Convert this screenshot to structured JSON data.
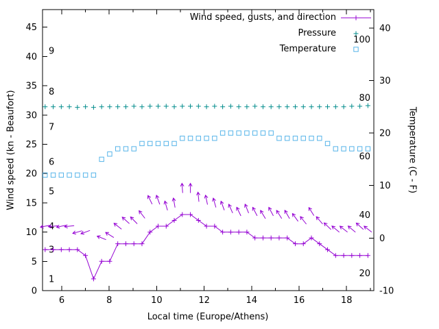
{
  "chart_data": {
    "type": "line",
    "title": "",
    "xlabel": "Local time (Europe/Athens)",
    "ylabel_left": "Wind speed (kn - Beaufort)",
    "ylabel_right": "Temperature (C - F)",
    "x_axis": {
      "min": 5.19,
      "max": 19.15,
      "ticks": [
        6,
        8,
        10,
        12,
        14,
        16,
        18
      ],
      "minor_ticks": [
        7,
        9,
        11,
        13,
        15,
        17,
        19
      ]
    },
    "y_left": {
      "min": 0,
      "max": 48,
      "ticks": [
        0,
        5,
        10,
        15,
        20,
        25,
        30,
        35,
        40,
        45
      ]
    },
    "y_right": {
      "min": -10,
      "max": 43.5,
      "ticks": [
        -10,
        0,
        10,
        20,
        30,
        40
      ]
    },
    "beaufort_labels": [
      {
        "label": "1",
        "kn": 2
      },
      {
        "label": "3",
        "kn": 7
      },
      {
        "label": "4",
        "kn": 11
      },
      {
        "label": "5",
        "kn": 17
      },
      {
        "label": "6",
        "kn": 22
      },
      {
        "label": "7",
        "kn": 28
      },
      {
        "label": "8",
        "kn": 34
      },
      {
        "label": "9",
        "kn": 41
      }
    ],
    "fahrenheit_labels": [
      {
        "label": "20",
        "c": -6.7
      },
      {
        "label": "40",
        "c": 4.4
      },
      {
        "label": "60",
        "c": 15.6
      },
      {
        "label": "80",
        "c": 26.7
      },
      {
        "label": "100",
        "c": 37.8
      }
    ],
    "x": [
      5.3,
      5.64,
      5.98,
      6.32,
      6.66,
      7.0,
      7.34,
      7.68,
      8.02,
      8.36,
      8.7,
      9.04,
      9.38,
      9.72,
      10.06,
      10.4,
      10.74,
      11.08,
      11.42,
      11.76,
      12.1,
      12.44,
      12.78,
      13.12,
      13.46,
      13.8,
      14.14,
      14.48,
      14.82,
      15.16,
      15.5,
      15.84,
      16.18,
      16.52,
      16.86,
      17.2,
      17.54,
      17.88,
      18.22,
      18.56,
      18.9
    ],
    "series": {
      "wind_speed": {
        "name": "Wind speed (kn)",
        "color": "#9400d3",
        "axis": "left",
        "marker": "plus-line",
        "values": [
          7,
          7,
          7,
          7,
          7,
          6,
          2,
          5,
          5,
          8,
          8,
          8,
          8,
          10,
          11,
          11,
          12,
          13,
          13,
          12,
          11,
          11,
          10,
          10,
          10,
          10,
          9,
          9,
          9,
          9,
          9,
          8,
          8,
          9,
          8,
          7,
          6,
          6,
          6,
          6,
          6
        ]
      },
      "wind_gusts": {
        "name": "Wind gusts with direction arrows",
        "color": "#9400d3",
        "axis": "left",
        "marker": "arrow",
        "values": [
          11,
          11,
          11,
          11,
          10,
          10,
          null,
          9,
          9.5,
          11,
          12,
          12,
          13,
          15.5,
          15.5,
          14.5,
          15,
          17.5,
          17.5,
          16,
          15.5,
          15,
          14.5,
          14,
          13.5,
          14,
          13.5,
          13,
          13.5,
          13,
          13,
          12.5,
          12,
          13.5,
          12,
          11,
          10.5,
          10.5,
          10.5,
          11,
          10.5
        ],
        "directions_deg": [
          190,
          185,
          192,
          186,
          196,
          200,
          null,
          158,
          148,
          142,
          138,
          134,
          128,
          116,
          110,
          106,
          100,
          94,
          90,
          96,
          102,
          106,
          110,
          114,
          116,
          112,
          118,
          121,
          118,
          122,
          120,
          126,
          128,
          122,
          131,
          136,
          140,
          142,
          140,
          138,
          142
        ]
      },
      "pressure": {
        "name": "Pressure",
        "color": "#008b8b",
        "axis": "left",
        "marker": "plus",
        "values": [
          31.4,
          31.4,
          31.4,
          31.4,
          31.3,
          31.4,
          31.3,
          31.4,
          31.4,
          31.4,
          31.4,
          31.5,
          31.4,
          31.5,
          31.5,
          31.5,
          31.4,
          31.5,
          31.5,
          31.5,
          31.4,
          31.5,
          31.4,
          31.5,
          31.4,
          31.4,
          31.5,
          31.4,
          31.4,
          31.4,
          31.4,
          31.4,
          31.4,
          31.4,
          31.4,
          31.4,
          31.4,
          31.4,
          31.5,
          31.5,
          31.6
        ]
      },
      "temperature": {
        "name": "Temperature (C)",
        "color": "#56b4e9",
        "axis": "right",
        "marker": "square",
        "values": [
          12,
          12,
          12,
          12,
          12,
          12,
          12,
          15,
          16,
          17,
          17,
          17,
          18,
          18,
          18,
          18,
          18,
          19,
          19,
          19,
          19,
          19,
          20,
          20,
          20,
          20,
          20,
          20,
          20,
          19,
          19,
          19,
          19,
          19,
          19,
          18,
          17,
          17,
          17,
          17,
          17
        ]
      }
    },
    "legend": {
      "position": "top-right-inside",
      "entries": [
        {
          "label": "Wind speed, gusts, and direction",
          "color": "#9400d3",
          "sample": "plus-line"
        },
        {
          "label": "Pressure",
          "color": "#008b8b",
          "sample": "plus"
        },
        {
          "label": "Temperature",
          "color": "#56b4e9",
          "sample": "square"
        }
      ]
    },
    "colors": {
      "wind": "#9400d3",
      "pressure": "#008b8b",
      "temperature": "#56b4e9",
      "axis": "#000000",
      "background": "#ffffff"
    }
  }
}
